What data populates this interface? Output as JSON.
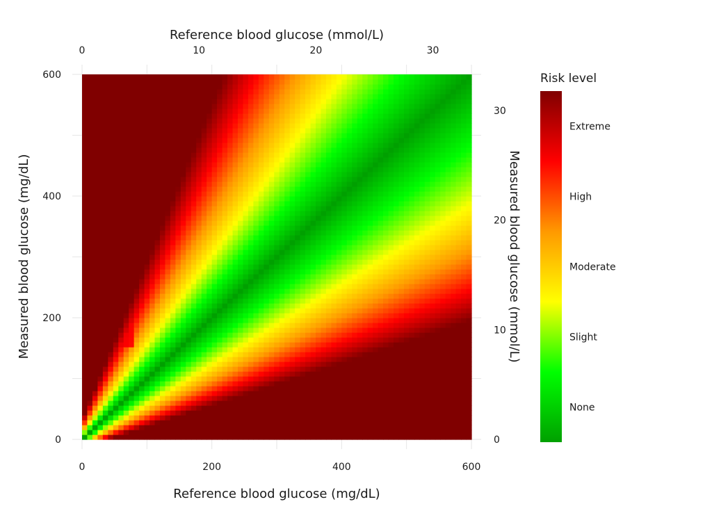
{
  "chart_data": {
    "type": "heatmap",
    "title": "",
    "xlabel_bottom": "Reference blood glucose (mg/dL)",
    "xlabel_top": "Reference blood glucose (mmol/L)",
    "ylabel_left": "Measured blood glucose (mg/dL)",
    "ylabel_right": "Measured blood glucose (mmol/L)",
    "x_range_mgdl": [
      0,
      600
    ],
    "y_range_mgdl": [
      0,
      600
    ],
    "x_ticks_mgdl": [
      0,
      200,
      400,
      600
    ],
    "y_ticks_mgdl": [
      0,
      200,
      400,
      600
    ],
    "x_ticks_mmol": [
      0,
      10,
      20,
      30
    ],
    "y_ticks_mmol": [
      0,
      10,
      20,
      30
    ],
    "mgdl_per_mmol": 18.0182,
    "risk_scale_range": [
      0,
      4
    ],
    "legend": {
      "title": "Risk level",
      "placement": "right",
      "labels": [
        "None",
        "Slight",
        "Moderate",
        "High",
        "Extreme"
      ],
      "label_values": [
        0.5,
        1.5,
        2.5,
        3.5,
        4.5
      ]
    },
    "colors": [
      "#00a000",
      "#00ff00",
      "#ffff00",
      "#ff9900",
      "#ff0000",
      "#800000"
    ],
    "grid": true
  }
}
